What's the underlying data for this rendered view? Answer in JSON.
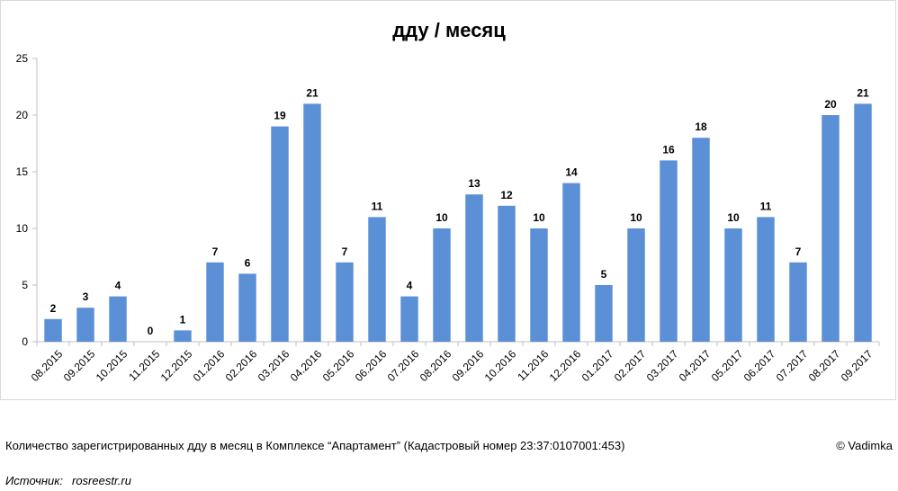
{
  "chart_data": {
    "type": "bar",
    "title": "дду / месяц",
    "xlabel": "",
    "ylabel": "",
    "ylim": [
      0,
      25
    ],
    "yticks": [
      "0",
      "5",
      "10",
      "15",
      "20",
      "25"
    ],
    "grid": false,
    "categories": [
      "08.2015",
      "09.2015",
      "10.2015",
      "11.2015",
      "12.2015",
      "01.2016",
      "02.2016",
      "03.2016",
      "04.2016",
      "05.2016",
      "06.2016",
      "07.2016",
      "08.2016",
      "09.2016",
      "10.2016",
      "11.2016",
      "12.2016",
      "01.2017",
      "02.2017",
      "03.2017",
      "04.2017",
      "05.2017",
      "06.2017",
      "07.2017",
      "08.2017",
      "09.2017"
    ],
    "values": [
      2,
      3,
      4,
      0,
      1,
      7,
      6,
      19,
      21,
      7,
      11,
      4,
      10,
      13,
      12,
      10,
      14,
      5,
      10,
      16,
      18,
      10,
      11,
      7,
      20,
      21
    ],
    "bar_color": "#5b8fd6"
  },
  "caption": "Количество зарегистрированных дду в месяц в Комплексе “Апартамент”  (Кадастровый номер 23:37:0107001:453)",
  "copyright": "© Vadimka",
  "source": {
    "label": "Источник:",
    "value": "rosreestr.ru"
  }
}
